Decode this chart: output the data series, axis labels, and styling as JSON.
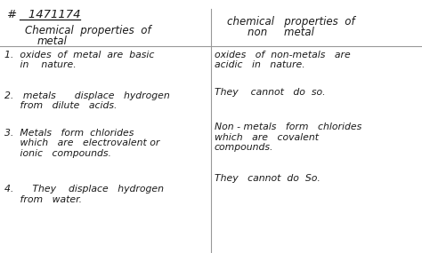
{
  "bg_color": "#ffffff",
  "line_color": "#999999",
  "text_color": "#1a1a1a",
  "header_id": "#   1471174",
  "col1_header": [
    "Chemical  properties  of",
    "metal"
  ],
  "col2_header": [
    "chemical   properties  of",
    "non     metal"
  ],
  "col1_items": [
    [
      "1.  oxides  of  metal  are  basic",
      "     in    nature."
    ],
    [
      "2.   metals      displace   hydrogen",
      "     from   dilute   acids."
    ],
    [
      "3.  Metals   form  chlorides",
      "     which   are   electrovalent or",
      "     ionic   compounds."
    ],
    [
      "4.      They    displace   hydrogen",
      "     from   water."
    ]
  ],
  "col2_items": [
    [
      "oxides   of  non-metals   are",
      "acidic   in   nature."
    ],
    [
      "They    cannot   do  so."
    ],
    [
      "Non - metals   form   chlorides",
      "which   are   covalent",
      "compounds."
    ],
    [
      "They   cannot  do  So."
    ]
  ],
  "font_size_header_id": 9.5,
  "font_size_header": 8.5,
  "font_size_body": 7.8
}
